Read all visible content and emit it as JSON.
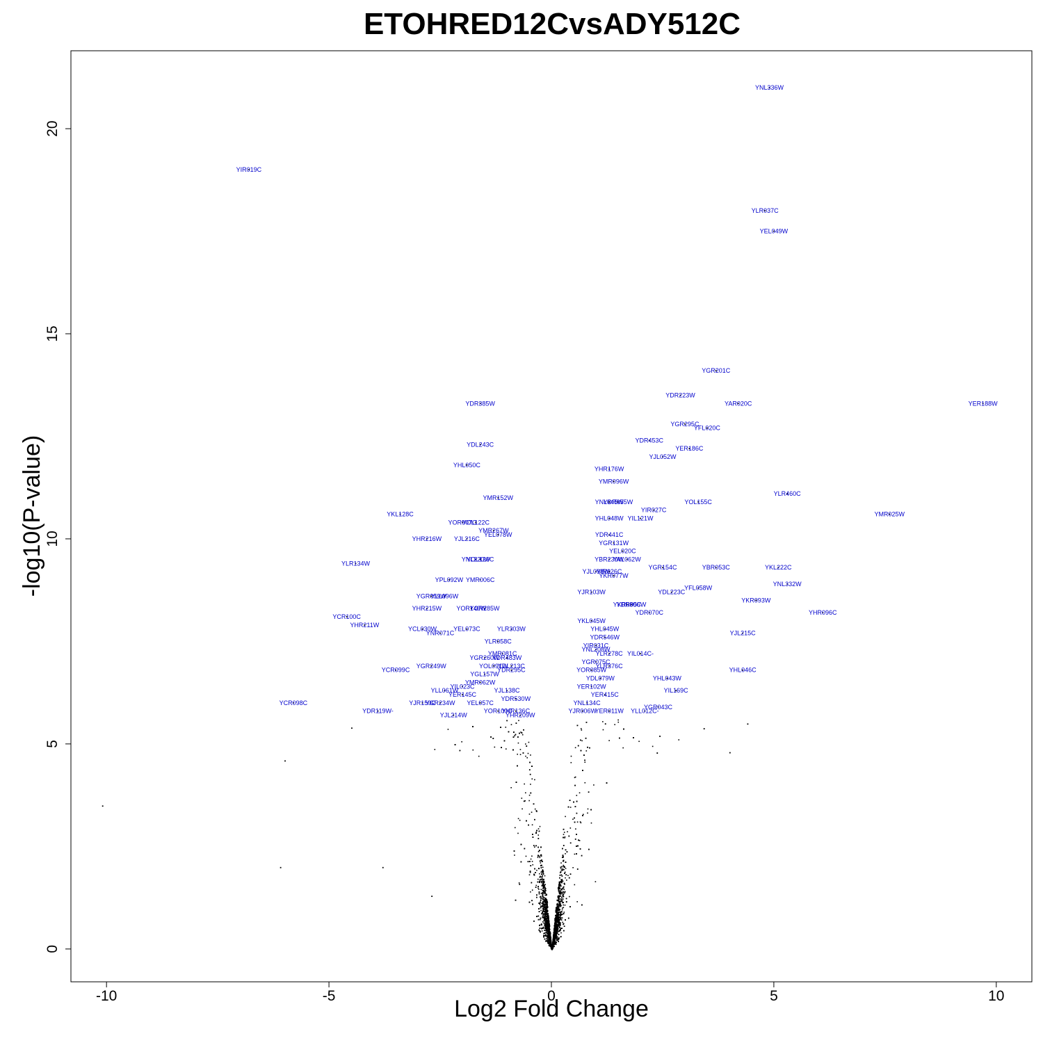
{
  "chart_data": {
    "type": "scatter",
    "title": "ETOHRED12CvsADY512C",
    "xlabel": "Log2 Fold Change",
    "ylabel": "-log10(P-value)",
    "xlim": [
      -10.8,
      10.8
    ],
    "ylim": [
      -0.8,
      21.9
    ],
    "xticks": [
      -10,
      -5,
      0,
      5,
      10
    ],
    "yticks": [
      0,
      5,
      10,
      15,
      20
    ],
    "point_color": "#000000",
    "label_color": "#0000cc",
    "labeled_genes": [
      {
        "name": "YNL336W",
        "x": 4.9,
        "y": 21.0
      },
      {
        "name": "YIR019C",
        "x": -6.8,
        "y": 19.0
      },
      {
        "name": "YLR037C",
        "x": 4.8,
        "y": 18.0
      },
      {
        "name": "YEL049W",
        "x": 5.0,
        "y": 17.5
      },
      {
        "name": "YGR201C",
        "x": 3.7,
        "y": 14.1
      },
      {
        "name": "YDR223W",
        "x": 2.9,
        "y": 13.5
      },
      {
        "name": "YAR020C",
        "x": 4.2,
        "y": 13.3
      },
      {
        "name": "YER188W",
        "x": 9.7,
        "y": 13.3
      },
      {
        "name": "YDR385W",
        "x": -1.6,
        "y": 13.3
      },
      {
        "name": "YGR295C",
        "x": 3.0,
        "y": 12.8
      },
      {
        "name": "YFL020C",
        "x": 3.5,
        "y": 12.7
      },
      {
        "name": "YDR453C",
        "x": 2.2,
        "y": 12.4
      },
      {
        "name": "YDL243C",
        "x": -1.6,
        "y": 12.3
      },
      {
        "name": "YER186C",
        "x": 3.1,
        "y": 12.2
      },
      {
        "name": "YJL052W",
        "x": 2.5,
        "y": 12.0
      },
      {
        "name": "YHL050C",
        "x": -1.9,
        "y": 11.8
      },
      {
        "name": "YHR176W",
        "x": 1.3,
        "y": 11.7
      },
      {
        "name": "YMR096W",
        "x": 1.4,
        "y": 11.4
      },
      {
        "name": "YLR460C",
        "x": 5.3,
        "y": 11.1
      },
      {
        "name": "YMR152W",
        "x": -1.2,
        "y": 11.0
      },
      {
        "name": "YNL045W",
        "x": 1.3,
        "y": 10.9
      },
      {
        "name": "YOL155C",
        "x": 3.3,
        "y": 10.9
      },
      {
        "name": "YDR055W",
        "x": 1.5,
        "y": 10.9
      },
      {
        "name": "YIR027C",
        "x": 2.3,
        "y": 10.7
      },
      {
        "name": "YKL128C",
        "x": -3.4,
        "y": 10.6
      },
      {
        "name": "YMR025W",
        "x": 7.6,
        "y": 10.6
      },
      {
        "name": "YIL121W",
        "x": 2.0,
        "y": 10.5
      },
      {
        "name": "YHL048W",
        "x": 1.3,
        "y": 10.5
      },
      {
        "name": "YOR007C",
        "x": -2.0,
        "y": 10.4
      },
      {
        "name": "YOL122C",
        "x": -1.7,
        "y": 10.4
      },
      {
        "name": "YMR267W",
        "x": -1.3,
        "y": 10.2
      },
      {
        "name": "YEL078W",
        "x": -1.2,
        "y": 10.1
      },
      {
        "name": "YDR441C",
        "x": 1.3,
        "y": 10.1
      },
      {
        "name": "YHR216W",
        "x": -2.8,
        "y": 10.0
      },
      {
        "name": "YJL216C",
        "x": -1.9,
        "y": 10.0
      },
      {
        "name": "YGR131W",
        "x": 1.4,
        "y": 9.9
      },
      {
        "name": "YEL020C",
        "x": 1.6,
        "y": 9.7
      },
      {
        "name": "YAL062W",
        "x": 1.7,
        "y": 9.5
      },
      {
        "name": "YNL220W",
        "x": -1.7,
        "y": 9.5
      },
      {
        "name": "YOL126C",
        "x": -1.6,
        "y": 9.5
      },
      {
        "name": "YBR230W",
        "x": 1.3,
        "y": 9.5
      },
      {
        "name": "YLR134W",
        "x": -4.4,
        "y": 9.4
      },
      {
        "name": "YKL222C",
        "x": 5.1,
        "y": 9.3
      },
      {
        "name": "YBR053C",
        "x": 3.7,
        "y": 9.3
      },
      {
        "name": "YGR154C",
        "x": 2.5,
        "y": 9.3
      },
      {
        "name": "YJL098W",
        "x": 1.0,
        "y": 9.2
      },
      {
        "name": "YIR026C",
        "x": 1.3,
        "y": 9.2
      },
      {
        "name": "YKR077W",
        "x": 1.4,
        "y": 9.1
      },
      {
        "name": "YPL092W",
        "x": -2.3,
        "y": 9.0
      },
      {
        "name": "YMR006C",
        "x": -1.6,
        "y": 9.0
      },
      {
        "name": "YNL332W",
        "x": 5.3,
        "y": 8.9
      },
      {
        "name": "YFL058W",
        "x": 3.3,
        "y": 8.8
      },
      {
        "name": "YJR103W",
        "x": 0.9,
        "y": 8.7
      },
      {
        "name": "YDL223C",
        "x": 2.7,
        "y": 8.7
      },
      {
        "name": "YGR059W",
        "x": -2.7,
        "y": 8.6
      },
      {
        "name": "YLL096W",
        "x": -2.4,
        "y": 8.6
      },
      {
        "name": "YKR093W",
        "x": 4.6,
        "y": 8.5
      },
      {
        "name": "YKR080C",
        "x": 1.7,
        "y": 8.4
      },
      {
        "name": "YDR056W",
        "x": 1.8,
        "y": 8.4
      },
      {
        "name": "YHR215W",
        "x": -2.8,
        "y": 8.3
      },
      {
        "name": "YOR140W",
        "x": -1.8,
        "y": 8.3
      },
      {
        "name": "YOR285W",
        "x": -1.5,
        "y": 8.3
      },
      {
        "name": "YDR070C",
        "x": 2.2,
        "y": 8.2
      },
      {
        "name": "YCR100C",
        "x": -4.6,
        "y": 8.1
      },
      {
        "name": "YHR096C",
        "x": 6.1,
        "y": 8.2
      },
      {
        "name": "YKL045W",
        "x": 0.9,
        "y": 8.0
      },
      {
        "name": "YHR211W",
        "x": -4.2,
        "y": 7.9
      },
      {
        "name": "YLR303W",
        "x": -0.9,
        "y": 7.8
      },
      {
        "name": "YEL073C",
        "x": -1.9,
        "y": 7.8
      },
      {
        "name": "YCL030W",
        "x": -2.9,
        "y": 7.8
      },
      {
        "name": "YNR071C",
        "x": -2.5,
        "y": 7.7
      },
      {
        "name": "YHL045W",
        "x": 1.2,
        "y": 7.8
      },
      {
        "name": "YJL215C",
        "x": 4.3,
        "y": 7.7
      },
      {
        "name": "YDR546W",
        "x": 1.2,
        "y": 7.6
      },
      {
        "name": "YLR058C",
        "x": -1.2,
        "y": 7.5
      },
      {
        "name": "YIR031C",
        "x": 1.0,
        "y": 7.4
      },
      {
        "name": "YNL208W",
        "x": 1.0,
        "y": 7.3
      },
      {
        "name": "YIL014C-",
        "x": 2.0,
        "y": 7.2
      },
      {
        "name": "YMR081C",
        "x": -1.1,
        "y": 7.2
      },
      {
        "name": "YGR260W",
        "x": -1.5,
        "y": 7.1
      },
      {
        "name": "YDR483W",
        "x": -1.0,
        "y": 7.1
      },
      {
        "name": "YLR278C",
        "x": 1.3,
        "y": 7.2
      },
      {
        "name": "YGR075C",
        "x": 1.0,
        "y": 7.0
      },
      {
        "name": "YLR376C",
        "x": 1.3,
        "y": 6.9
      },
      {
        "name": "YOL091W",
        "x": -1.3,
        "y": 6.9
      },
      {
        "name": "YDL213C",
        "x": -0.9,
        "y": 6.9
      },
      {
        "name": "YCR099C",
        "x": -3.5,
        "y": 6.8
      },
      {
        "name": "YGR249W",
        "x": -2.7,
        "y": 6.9
      },
      {
        "name": "YDR295C",
        "x": -0.9,
        "y": 6.8
      },
      {
        "name": "YHL046C",
        "x": 4.3,
        "y": 6.8
      },
      {
        "name": "YGL157W",
        "x": -1.5,
        "y": 6.7
      },
      {
        "name": "YOR085W",
        "x": 0.9,
        "y": 6.8
      },
      {
        "name": "YDL079W",
        "x": 1.1,
        "y": 6.6
      },
      {
        "name": "YHL043W",
        "x": 2.6,
        "y": 6.6
      },
      {
        "name": "YMR062W",
        "x": -1.6,
        "y": 6.5
      },
      {
        "name": "YIL023C",
        "x": -2.0,
        "y": 6.4
      },
      {
        "name": "YER102W",
        "x": 0.9,
        "y": 6.4
      },
      {
        "name": "YLL061W",
        "x": -2.4,
        "y": 6.3
      },
      {
        "name": "YIL169C",
        "x": 2.8,
        "y": 6.3
      },
      {
        "name": "YJL138C",
        "x": -1.0,
        "y": 6.3
      },
      {
        "name": "YER145C",
        "x": -2.0,
        "y": 6.2
      },
      {
        "name": "YER415C",
        "x": 1.2,
        "y": 6.2
      },
      {
        "name": "YDR530W",
        "x": -0.8,
        "y": 6.1
      },
      {
        "name": "YCR098C",
        "x": -5.8,
        "y": 6.0
      },
      {
        "name": "YJR150C",
        "x": -2.9,
        "y": 6.0
      },
      {
        "name": "YGR234W",
        "x": -2.5,
        "y": 6.0
      },
      {
        "name": "YEL057C",
        "x": -1.6,
        "y": 6.0
      },
      {
        "name": "YNL134C",
        "x": 0.8,
        "y": 6.0
      },
      {
        "name": "YGR043C",
        "x": 2.4,
        "y": 5.9
      },
      {
        "name": "YDR119W-",
        "x": -3.9,
        "y": 5.8
      },
      {
        "name": "YOR100C",
        "x": -1.2,
        "y": 5.8
      },
      {
        "name": "YHR136C",
        "x": -0.8,
        "y": 5.8
      },
      {
        "name": "YJR006W",
        "x": 0.7,
        "y": 5.8
      },
      {
        "name": "YER011W",
        "x": 1.3,
        "y": 5.8
      },
      {
        "name": "YLL012C-",
        "x": 2.1,
        "y": 5.8
      },
      {
        "name": "YJL214W",
        "x": -2.2,
        "y": 5.7
      },
      {
        "name": "YHR209W",
        "x": -0.7,
        "y": 5.7
      }
    ]
  }
}
